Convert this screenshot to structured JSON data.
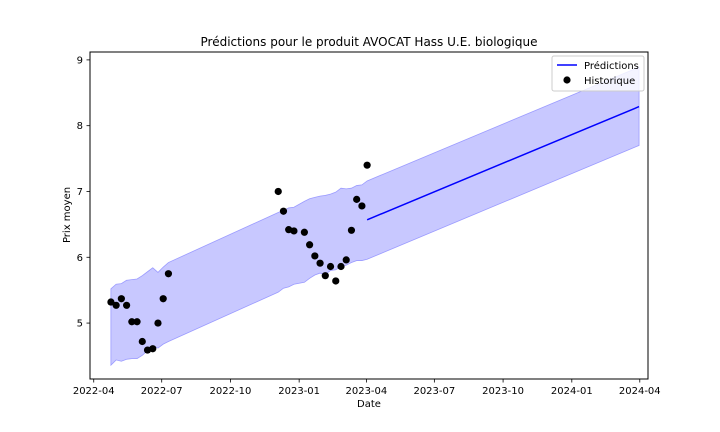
{
  "chart_data": {
    "type": "line",
    "title": "Prédictions pour le produit AVOCAT Hass U.E. biologique",
    "xlabel": "Date",
    "ylabel": "Prix moyen",
    "xlim": [
      "2022-03-27",
      "2024-04-12"
    ],
    "ylim": [
      4.15,
      9.12
    ],
    "x_ticks": [
      "2022-04",
      "2022-07",
      "2022-10",
      "2023-01",
      "2023-04",
      "2023-07",
      "2023-10",
      "2024-01",
      "2024-04"
    ],
    "y_ticks": [
      5,
      6,
      7,
      8,
      9
    ],
    "grid": false,
    "legend_position": "top-right",
    "colors": {
      "prediction": "#0000ff",
      "band": "#c8c8ff",
      "band_edge": "#9b9bff",
      "history": "#000000"
    },
    "legend": [
      {
        "label": "Prédictions",
        "kind": "line"
      },
      {
        "label": "Historique",
        "kind": "marker"
      }
    ],
    "series": [
      {
        "name": "Prédictions",
        "kind": "line",
        "points": [
          {
            "x": "2023-04-02",
            "y": 6.57
          },
          {
            "x": "2024-03-31",
            "y": 8.29
          }
        ]
      },
      {
        "name": "Historique",
        "kind": "scatter",
        "points": [
          {
            "x": "2022-04-24",
            "y": 5.32
          },
          {
            "x": "2022-05-01",
            "y": 5.27
          },
          {
            "x": "2022-05-08",
            "y": 5.37
          },
          {
            "x": "2022-05-15",
            "y": 5.27
          },
          {
            "x": "2022-05-22",
            "y": 5.02
          },
          {
            "x": "2022-05-29",
            "y": 5.02
          },
          {
            "x": "2022-06-05",
            "y": 4.72
          },
          {
            "x": "2022-06-12",
            "y": 4.59
          },
          {
            "x": "2022-06-19",
            "y": 4.61
          },
          {
            "x": "2022-06-26",
            "y": 5.0
          },
          {
            "x": "2022-07-03",
            "y": 5.37
          },
          {
            "x": "2022-07-10",
            "y": 5.75
          },
          {
            "x": "2022-12-04",
            "y": 7.0
          },
          {
            "x": "2022-12-11",
            "y": 6.7
          },
          {
            "x": "2022-12-18",
            "y": 6.42
          },
          {
            "x": "2022-12-25",
            "y": 6.4
          },
          {
            "x": "2023-01-08",
            "y": 6.38
          },
          {
            "x": "2023-01-15",
            "y": 6.19
          },
          {
            "x": "2023-01-22",
            "y": 6.02
          },
          {
            "x": "2023-01-29",
            "y": 5.91
          },
          {
            "x": "2023-02-05",
            "y": 5.72
          },
          {
            "x": "2023-02-12",
            "y": 5.86
          },
          {
            "x": "2023-02-19",
            "y": 5.64
          },
          {
            "x": "2023-02-26",
            "y": 5.86
          },
          {
            "x": "2023-03-05",
            "y": 5.96
          },
          {
            "x": "2023-03-12",
            "y": 6.41
          },
          {
            "x": "2023-03-19",
            "y": 6.88
          },
          {
            "x": "2023-03-26",
            "y": 6.78
          },
          {
            "x": "2023-04-02",
            "y": 7.4
          }
        ]
      }
    ],
    "confidence_band": [
      {
        "x": "2022-04-24",
        "lower": 4.36,
        "upper": 5.52
      },
      {
        "x": "2022-05-01",
        "lower": 4.44,
        "upper": 5.59
      },
      {
        "x": "2022-05-08",
        "lower": 4.42,
        "upper": 5.6
      },
      {
        "x": "2022-05-15",
        "lower": 4.45,
        "upper": 5.65
      },
      {
        "x": "2022-05-22",
        "lower": 4.46,
        "upper": 5.66
      },
      {
        "x": "2022-05-29",
        "lower": 4.46,
        "upper": 5.67
      },
      {
        "x": "2022-06-05",
        "lower": 4.51,
        "upper": 5.72
      },
      {
        "x": "2022-06-12",
        "lower": 4.58,
        "upper": 5.78
      },
      {
        "x": "2022-06-19",
        "lower": 4.65,
        "upper": 5.84
      },
      {
        "x": "2022-06-26",
        "lower": 4.62,
        "upper": 5.77
      },
      {
        "x": "2022-07-03",
        "lower": 4.68,
        "upper": 5.85
      },
      {
        "x": "2022-07-10",
        "lower": 4.72,
        "upper": 5.92
      },
      {
        "x": "2022-12-04",
        "lower": 5.47,
        "upper": 6.68
      },
      {
        "x": "2022-12-11",
        "lower": 5.53,
        "upper": 6.71
      },
      {
        "x": "2022-12-18",
        "lower": 5.55,
        "upper": 6.75
      },
      {
        "x": "2022-12-25",
        "lower": 5.59,
        "upper": 6.76
      },
      {
        "x": "2023-01-08",
        "lower": 5.62,
        "upper": 6.85
      },
      {
        "x": "2023-01-15",
        "lower": 5.68,
        "upper": 6.89
      },
      {
        "x": "2023-01-22",
        "lower": 5.73,
        "upper": 6.91
      },
      {
        "x": "2023-01-29",
        "lower": 5.76,
        "upper": 6.93
      },
      {
        "x": "2023-02-05",
        "lower": 5.74,
        "upper": 6.94
      },
      {
        "x": "2023-02-12",
        "lower": 5.8,
        "upper": 6.96
      },
      {
        "x": "2023-02-19",
        "lower": 5.81,
        "upper": 6.99
      },
      {
        "x": "2023-02-26",
        "lower": 5.86,
        "upper": 7.05
      },
      {
        "x": "2023-03-05",
        "lower": 5.88,
        "upper": 7.04
      },
      {
        "x": "2023-03-12",
        "lower": 5.92,
        "upper": 7.05
      },
      {
        "x": "2023-03-19",
        "lower": 5.95,
        "upper": 7.09
      },
      {
        "x": "2023-03-26",
        "lower": 5.95,
        "upper": 7.1
      },
      {
        "x": "2023-04-02",
        "lower": 5.97,
        "upper": 7.16
      },
      {
        "x": "2024-03-31",
        "lower": 7.7,
        "upper": 8.89
      }
    ]
  }
}
